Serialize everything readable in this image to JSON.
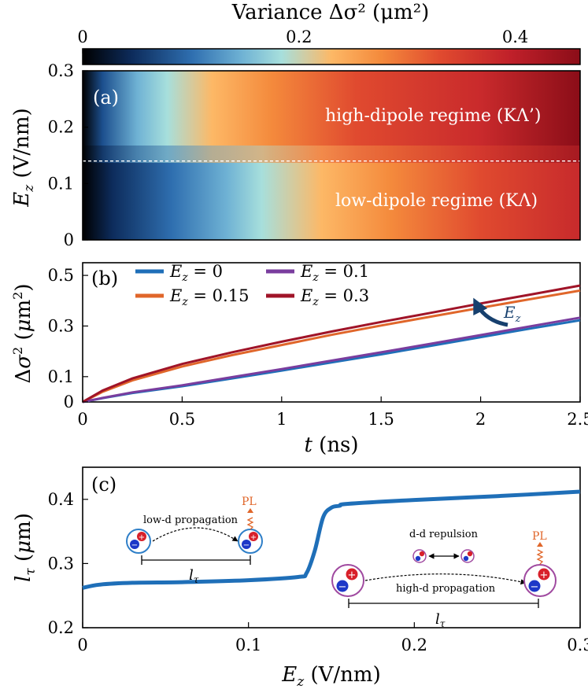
{
  "colorbar": {
    "title": "Variance  Δσ² (μm²)",
    "ticks": [
      "0",
      "0.2",
      "0.4"
    ],
    "range": [
      0,
      0.46
    ],
    "colors": [
      "#000000",
      "#0d2c5c",
      "#2f6fb0",
      "#6fb2d4",
      "#a7dfdc",
      "#fdb866",
      "#f48a3c",
      "#e04a2f",
      "#c0202a",
      "#8b0d18"
    ]
  },
  "panel_a": {
    "label": "(a)",
    "ylabel": "E_z (V/nm)",
    "yticks": [
      "0",
      "0.1",
      "0.2",
      "0.3"
    ],
    "ylim": [
      0,
      0.3
    ],
    "xlim": [
      0,
      2.5
    ],
    "threshold": 0.14,
    "region_high": "high-dipole regime (KΛ’)",
    "region_low": "low-dipole regime (KΛ)"
  },
  "chart_data": [
    {
      "type": "heatmap",
      "title": "Variance Δσ² (μm²)",
      "x_range": [
        0,
        2.5
      ],
      "y_range": [
        0,
        0.3
      ],
      "xlabel": "t (ns)",
      "ylabel": "E_z (V/nm)",
      "slope_low": 0.126,
      "slope_high": 0.186,
      "threshold": 0.14
    },
    {
      "type": "line",
      "label": "(b)",
      "xlabel": "t (ns)",
      "ylabel": "Δσ² (μm²)",
      "xlim": [
        0,
        2.5
      ],
      "ylim": [
        0,
        0.55
      ],
      "xticks": [
        "0",
        "0.5",
        "1",
        "1.5",
        "2",
        "2.5"
      ],
      "yticks": [
        "0",
        "0.1",
        "0.3",
        "0.5"
      ],
      "annotation": "E_z",
      "series": [
        {
          "name": "E_z = 0",
          "color": "#1f6fb8",
          "x": [
            0,
            0.1,
            0.25,
            0.5,
            0.75,
            1.0,
            1.25,
            1.5,
            1.75,
            2.0,
            2.25,
            2.5
          ],
          "y": [
            0,
            0.015,
            0.035,
            0.062,
            0.093,
            0.124,
            0.156,
            0.188,
            0.222,
            0.256,
            0.29,
            0.323
          ]
        },
        {
          "name": "E_z = 0.15",
          "color": "#e0662a",
          "x": [
            0,
            0.1,
            0.25,
            0.5,
            0.75,
            1.0,
            1.25,
            1.5,
            1.75,
            2.0,
            2.25,
            2.5
          ],
          "y": [
            0,
            0.04,
            0.085,
            0.14,
            0.185,
            0.225,
            0.265,
            0.302,
            0.337,
            0.372,
            0.406,
            0.44
          ]
        },
        {
          "name": "E_z = 0.1",
          "color": "#7a3d9e",
          "x": [
            0,
            0.1,
            0.25,
            0.5,
            0.75,
            1.0,
            1.25,
            1.5,
            1.75,
            2.0,
            2.25,
            2.5
          ],
          "y": [
            0,
            0.016,
            0.038,
            0.066,
            0.098,
            0.13,
            0.163,
            0.196,
            0.23,
            0.264,
            0.299,
            0.333
          ]
        },
        {
          "name": "E_z = 0.3",
          "color": "#a01428",
          "x": [
            0,
            0.1,
            0.25,
            0.5,
            0.75,
            1.0,
            1.25,
            1.5,
            1.75,
            2.0,
            2.25,
            2.5
          ],
          "y": [
            0,
            0.045,
            0.093,
            0.15,
            0.196,
            0.238,
            0.278,
            0.316,
            0.352,
            0.389,
            0.424,
            0.46
          ]
        }
      ]
    },
    {
      "type": "line",
      "label": "(c)",
      "xlabel": "E_z (V/nm)",
      "ylabel": "l_τ (μm)",
      "xlim": [
        0,
        0.3
      ],
      "ylim": [
        0.2,
        0.45
      ],
      "xticks": [
        "0",
        "0.1",
        "0.2",
        "0.3"
      ],
      "yticks": [
        "0.2",
        "0.3",
        "0.4"
      ],
      "series": [
        {
          "name": "l_τ",
          "color": "#1f6fb8",
          "x": [
            0,
            0.01,
            0.03,
            0.06,
            0.1,
            0.13,
            0.135,
            0.14,
            0.145,
            0.15,
            0.155,
            0.16,
            0.2,
            0.25,
            0.3
          ],
          "y": [
            0.262,
            0.267,
            0.27,
            0.271,
            0.274,
            0.279,
            0.285,
            0.32,
            0.372,
            0.387,
            0.39,
            0.393,
            0.399,
            0.405,
            0.412
          ]
        }
      ]
    }
  ],
  "panel_c_inset": {
    "pl_label": "PL",
    "low_d": "low-d propagation",
    "dd_repulsion": "d-d repulsion",
    "high_d": "high-d propagation",
    "length": "l_τ"
  }
}
